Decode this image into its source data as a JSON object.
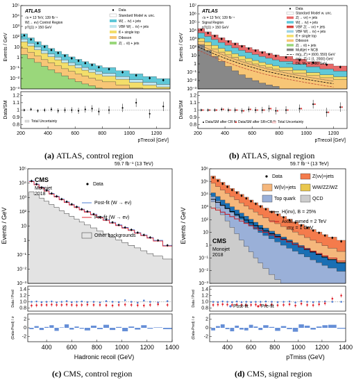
{
  "colors": {
    "atlas_zvv": "#f28b5e",
    "atlas_wlv": "#5fc8d8",
    "atlas_vbf": "#bfe6ef",
    "atlas_tt": "#f3de6a",
    "atlas_diboson": "#f7c676",
    "atlas_zll": "#9ad77b",
    "atlas_multijet": "#888888",
    "cms_zvv": "#f47b4c",
    "cms_wlv": "#f5b77c",
    "cms_vv": "#e9c74e",
    "cms_top": "#9ab0d8",
    "cms_qcd": "#cccccc",
    "cms_vv_dark": "#1a6fb4",
    "postfit": "#4b7bd0",
    "prefit": "#e0232d"
  },
  "panels": [
    {
      "caption_id": "(a)",
      "caption_text": "ATLAS, control region",
      "header": "ATLAS",
      "sub1": "√s = 13 TeV, 139 fb⁻¹",
      "sub2": "W(→ eν) Control Region",
      "sub3": "pT(j1) > 150 GeV",
      "ylabel": "Events / GeV",
      "ratio_ylabel": "Data/SM",
      "xlabel": "pTrecoil [GeV]",
      "legend": [
        "Data",
        "Standard Model w. unc.",
        "W(→ ℓν) + jets",
        "VBF W(→ ℓν) + jets",
        "tt̄ + single top",
        "Diboson",
        "Z(→ ℓℓ) + jets"
      ],
      "ratio_legend": "Total Uncertainty",
      "xticks": [
        "200",
        "400",
        "600",
        "800",
        "1000",
        "1200"
      ],
      "yticks": [
        "10⁻³",
        "10⁻²",
        "10⁻¹",
        "1",
        "10",
        "10²",
        "10³",
        "10⁴",
        "10⁵"
      ],
      "ratio_yticks": [
        "0.8",
        "0.9",
        "1",
        "1.1",
        "1.2"
      ]
    },
    {
      "caption_id": "(b)",
      "caption_text": "ATLAS, signal region",
      "header": "ATLAS",
      "sub1": "√s = 13 TeV, 139 fb⁻¹",
      "sub2": "Signal Region",
      "sub3": "pT(j1) > 150 GeV",
      "ylabel": "Events / GeV",
      "ratio_ylabel": "Data/SM",
      "xlabel": "pTrecoil [GeV]",
      "legend": [
        "Data",
        "Standard Model w. unc.",
        "Z(→ νν) + jets",
        "W(→ ℓν) + jets",
        "VBF Z(→ νν) + jets",
        "VBF W(→ ℓν) + jets",
        "tt̄ + single top",
        "Diboson",
        "Z(→ ℓℓ) + jets",
        "Multijet + NCB",
        "m(χ, Z') = (600, 550) GeV",
        "m(χ, Z') = (1, 2000) GeV",
        "DE, M⁎ = 1480 GeV"
      ],
      "ratio_legend": [
        "Data/SM after CR fit",
        "Data/SM after SR+CR fit",
        "Total Uncertainty"
      ],
      "xticks": [
        "200",
        "400",
        "600",
        "800",
        "1000",
        "1200"
      ],
      "yticks": [
        "10⁻³",
        "10⁻²",
        "10⁻¹",
        "1",
        "10",
        "10²",
        "10³",
        "10⁴",
        "10⁵",
        "10⁶",
        "10⁷"
      ],
      "ratio_yticks": [
        "0.8",
        "0.9",
        "1",
        "1.1",
        "1.2"
      ]
    },
    {
      "caption_id": "(c)",
      "caption_text": "CMS, control region",
      "header": "CMS",
      "lumi": "59.7 fb⁻¹ (13 TeV)",
      "sub1": "Monojet",
      "sub2": "2018",
      "ylabel": "Events / GeV",
      "ratio_ylabel": "Data / Pred",
      "pull_ylabel": "(Data-Pred) / σ",
      "xlabel": "Hadronic recoil (GeV)",
      "legend": [
        "Data",
        "Post-fit (W → eν)",
        "Pre-fit (W → eν)",
        "Other backgrounds"
      ],
      "xticks": [
        "400",
        "600",
        "800",
        "1000",
        "1200",
        "1400"
      ],
      "yticks": [
        "10⁻³",
        "10⁻²",
        "10⁻¹",
        "1",
        "10",
        "10²",
        "10³",
        "10⁴",
        "10⁵"
      ],
      "ratio_yticks": [
        "0.8",
        "1.0",
        "1.2",
        "1.4"
      ],
      "pull_yticks": [
        "-2",
        "0",
        "2"
      ]
    },
    {
      "caption_id": "(d)",
      "caption_text": "CMS, signal region",
      "header": "CMS",
      "lumi": "59.7 fb⁻¹ (13 TeV)",
      "sub1": "Monojet",
      "sub2": "2018",
      "ylabel": "Events / GeV",
      "ratio_ylabel": "Data / Pred",
      "pull_ylabel": "(Data-Pred) / σ",
      "xlabel": "pTmiss (GeV)",
      "legend": [
        "Data",
        "Z(νν)+jets",
        "W(lν)+jets",
        "WW/ZZ/WZ",
        "Top quark",
        "QCD",
        "H(inv), B = 25%",
        "Axial, mmed = 2 TeV",
        "mχ = 1 GeV"
      ],
      "ratio_legend": [
        "Post-fit",
        "Pre-fit"
      ],
      "xticks": [
        "400",
        "600",
        "800",
        "1000",
        "1200",
        "1400"
      ],
      "yticks": [
        "10⁻³",
        "10⁻²",
        "10⁻¹",
        "1",
        "10",
        "10²",
        "10³",
        "10⁴",
        "10⁵",
        "10⁶"
      ],
      "ratio_yticks": [
        "0.8",
        "1.0",
        "1.2",
        "1.4"
      ],
      "pull_yticks": [
        "-2",
        "0",
        "2"
      ]
    }
  ],
  "chart_data": [
    {
      "type": "area",
      "title": "ATLAS, control region",
      "x": [
        200,
        250,
        300,
        350,
        400,
        450,
        500,
        550,
        600,
        650,
        700,
        750,
        800,
        900,
        1000,
        1100,
        1200
      ],
      "series": [
        {
          "name": "Z(→ ℓℓ) + jets",
          "values": [
            2,
            0.8,
            0.35,
            0.15,
            0.07,
            0.035,
            0.018,
            0.009,
            0.005,
            0.003,
            0.002,
            0.0012,
            0.0008,
            0.0004,
            0.0002,
            0.0001,
            0.0001
          ]
        },
        {
          "name": "Diboson",
          "values": [
            6,
            2.5,
            1.1,
            0.5,
            0.25,
            0.13,
            0.07,
            0.04,
            0.023,
            0.014,
            0.009,
            0.006,
            0.004,
            0.002,
            0.001,
            0.0006,
            0.0004
          ]
        },
        {
          "name": "tt̄ + single top",
          "values": [
            25,
            10,
            4.2,
            1.9,
            0.9,
            0.45,
            0.24,
            0.13,
            0.075,
            0.045,
            0.028,
            0.018,
            0.012,
            0.006,
            0.003,
            0.0016,
            0.001
          ]
        },
        {
          "name": "VBF W(→ ℓν) + jets",
          "values": [
            28,
            11,
            4.8,
            2.2,
            1.05,
            0.53,
            0.28,
            0.155,
            0.09,
            0.054,
            0.034,
            0.022,
            0.014,
            0.007,
            0.0036,
            0.002,
            0.0012
          ]
        },
        {
          "name": "W(→ ℓν) + jets",
          "values": [
            130,
            55,
            24,
            11,
            5.4,
            2.8,
            1.5,
            0.85,
            0.5,
            0.3,
            0.19,
            0.12,
            0.08,
            0.04,
            0.02,
            0.011,
            0.007
          ]
        }
      ],
      "data": [
        135,
        56,
        24,
        11.2,
        5.5,
        2.8,
        1.5,
        0.86,
        0.5,
        0.3,
        0.2,
        0.12,
        0.08,
        0.04,
        0.02,
        0.011,
        0.007
      ],
      "ratio": [
        1.0,
        1.01,
        0.99,
        1.0,
        1.01,
        0.99,
        1.0,
        1.0,
        0.99,
        1.01,
        1.02,
        0.98,
        1.0,
        1.03,
        1.1,
        0.95,
        1.05
      ],
      "xlim": [
        200,
        1300
      ],
      "ylim_log": [
        -3,
        5
      ]
    },
    {
      "type": "area",
      "title": "ATLAS, signal region",
      "x": [
        200,
        250,
        300,
        350,
        400,
        450,
        500,
        550,
        600,
        650,
        700,
        750,
        800,
        900,
        1000,
        1100,
        1200
      ],
      "series": [
        {
          "name": "Multijet + NCB",
          "values": [
            200,
            40,
            8,
            2,
            0.5,
            0.15,
            0.05,
            0.02,
            0.01,
            0.005,
            0.003,
            0.002,
            0.001,
            0.0005,
            0.0003,
            0.0002,
            0.0001
          ]
        },
        {
          "name": "Diboson",
          "values": [
            300,
            120,
            52,
            24,
            12,
            6,
            3.2,
            1.8,
            1.0,
            0.6,
            0.38,
            0.24,
            0.16,
            0.08,
            0.04,
            0.022,
            0.013
          ]
        },
        {
          "name": "tt̄ + single top",
          "values": [
            700,
            260,
            110,
            48,
            22,
            10.5,
            5.3,
            2.8,
            1.55,
            0.9,
            0.54,
            0.34,
            0.22,
            0.1,
            0.05,
            0.027,
            0.016
          ]
        },
        {
          "name": "W(→ ℓν) + jets",
          "values": [
            4000,
            1600,
            680,
            300,
            140,
            68,
            35,
            19,
            11,
            6.4,
            3.9,
            2.5,
            1.6,
            0.75,
            0.37,
            0.2,
            0.11
          ]
        },
        {
          "name": "Z(→ νν) + jets",
          "values": [
            12000,
            5000,
            2200,
            1000,
            480,
            240,
            125,
            68,
            39,
            23,
            14,
            9,
            6,
            2.8,
            1.4,
            0.75,
            0.42
          ]
        }
      ],
      "data": [
        12200,
        5050,
        2210,
        1005,
        478,
        242,
        126,
        69,
        39,
        23,
        14.2,
        9.1,
        6.1,
        2.9,
        1.45,
        0.8,
        0.42
      ],
      "ratio": [
        1.0,
        1.0,
        1.0,
        1.01,
        1.0,
        1.0,
        0.99,
        1.01,
        1.0,
        1.0,
        1.02,
        0.99,
        1.0,
        1.02,
        1.08,
        0.97,
        1.04
      ],
      "xlim": [
        200,
        1300
      ],
      "ylim_log": [
        -3,
        7
      ]
    },
    {
      "type": "line",
      "title": "CMS, control region",
      "x": [
        260,
        300,
        340,
        380,
        420,
        460,
        500,
        540,
        580,
        620,
        660,
        700,
        750,
        800,
        850,
        900,
        950,
        1000,
        1050,
        1100,
        1150,
        1200,
        1250,
        1325
      ],
      "data": [
        14000,
        8500,
        5000,
        3100,
        1900,
        1200,
        760,
        500,
        330,
        220,
        150,
        105,
        68,
        42,
        28,
        18,
        12,
        8,
        5.5,
        3.5,
        2.4,
        1.6,
        1.0,
        0.45
      ],
      "other_backgrounds": [
        2500,
        1500,
        900,
        540,
        320,
        200,
        120,
        75,
        48,
        30,
        19,
        12,
        7.5,
        4.5,
        2.8,
        1.7,
        1.1,
        0.7,
        0.45,
        0.3,
        0.19,
        0.12,
        0.08,
        0.05
      ],
      "ratio_data": [
        1.0,
        1.01,
        0.99,
        1.0,
        1.01,
        0.98,
        1.0,
        1.02,
        0.99,
        1.0,
        1.01,
        0.99,
        1.0,
        0.98,
        1.02,
        1.0,
        0.99,
        1.05,
        1.0,
        0.97,
        1.04,
        1.0,
        0.98,
        1.02
      ],
      "ratio_prefit": [
        0.88,
        0.89,
        0.9,
        0.9,
        0.91,
        0.9,
        0.9,
        0.91,
        0.9,
        0.89,
        0.9,
        0.91,
        0.9,
        0.9,
        0.89,
        0.88,
        0.9,
        0.91,
        0.9,
        0.89,
        0.88,
        0.9,
        0.92,
        0.9
      ],
      "pull": [
        -0.3,
        0.4,
        -0.5,
        0.2,
        0.6,
        -0.7,
        0.1,
        0.8,
        -0.4,
        0.3,
        -0.2,
        -0.6,
        0.5,
        -0.3,
        0.7,
        -0.5,
        0.2,
        -0.8,
        0.3,
        -0.4,
        0.6,
        -0.2,
        0.1,
        -0.3
      ],
      "xlim": [
        250,
        1400
      ],
      "ylim_log": [
        -3,
        5
      ]
    },
    {
      "type": "area",
      "title": "CMS, signal region",
      "x": [
        260,
        300,
        340,
        380,
        420,
        460,
        500,
        540,
        580,
        620,
        660,
        700,
        750,
        800,
        850,
        900,
        950,
        1000,
        1050,
        1100,
        1150,
        1200,
        1250,
        1325
      ],
      "series": [
        {
          "name": "QCD",
          "values": [
            2500,
            800,
            250,
            80,
            25,
            8,
            2.5,
            0.8,
            0.3,
            0.1,
            0.04,
            0.015,
            0.005,
            0.002,
            0.001,
            0.001,
            0.001,
            0.001,
            0.001,
            0.001,
            0.001,
            0.001,
            0.001,
            0.001
          ]
        },
        {
          "name": "Top quark",
          "values": [
            4000,
            2200,
            1200,
            650,
            350,
            190,
            105,
            58,
            32,
            18,
            10,
            5.8,
            3.2,
            1.8,
            1.0,
            0.58,
            0.34,
            0.2,
            0.12,
            0.07,
            0.042,
            0.025,
            0.015,
            0.008
          ]
        },
        {
          "name": "WW/ZZ/WZ",
          "values": [
            6500,
            3700,
            2100,
            1200,
            680,
            390,
            225,
            130,
            76,
            45,
            27,
            16,
            9.5,
            5.6,
            3.4,
            2.0,
            1.2,
            0.75,
            0.46,
            0.28,
            0.17,
            0.1,
            0.06,
            0.035
          ]
        },
        {
          "name": "W(lν)+jets",
          "values": [
            60000,
            33000,
            18000,
            10000,
            5500,
            3100,
            1750,
            1000,
            580,
            340,
            200,
            120,
            70,
            42,
            25,
            15,
            9.2,
            5.6,
            3.4,
            2.1,
            1.3,
            0.8,
            0.5,
            0.28
          ]
        },
        {
          "name": "Z(νν)+jets",
          "values": [
            200000,
            115000,
            66000,
            38000,
            22000,
            13000,
            7800,
            4700,
            2850,
            1750,
            1080,
            670,
            400,
            245,
            150,
            93,
            58,
            36,
            23,
            14.5,
            9.2,
            5.8,
            3.7,
            2.1
          ]
        }
      ],
      "data": [
        202000,
        114000,
        66500,
        38200,
        21800,
        13100,
        7750,
        4720,
        2830,
        1760,
        1085,
        665,
        402,
        244,
        151,
        92,
        58.5,
        36,
        23.5,
        14.2,
        9.4,
        5.7,
        3.8,
        2.0
      ],
      "ratio_postfit": [
        1.0,
        0.99,
        1.01,
        1.0,
        0.99,
        1.01,
        0.99,
        1.0,
        0.99,
        1.0,
        1.0,
        1.01,
        1.0,
        0.99,
        1.0,
        1.01,
        0.98,
        1.02,
        1.0,
        0.99,
        1.0,
        1.01,
        1.0,
        1.0
      ],
      "ratio_prefit": [
        0.9,
        0.91,
        0.92,
        0.91,
        0.9,
        0.91,
        0.9,
        0.89,
        0.9,
        0.91,
        0.9,
        0.9,
        0.91,
        0.89,
        0.9,
        0.92,
        0.88,
        0.94,
        0.9,
        0.89,
        0.92,
        0.95,
        1.1,
        1.2
      ],
      "pull": [
        -0.6,
        0.4,
        0.8,
        -0.3,
        -0.8,
        0.5,
        -0.4,
        -0.6,
        0.7,
        0.3,
        -0.5,
        0.6,
        0.2,
        -0.7,
        0.4,
        -0.3,
        -0.9,
        0.8,
        0.5,
        -0.4,
        0.3,
        0.6,
        0.7,
        -0.2
      ],
      "xlim": [
        250,
        1400
      ],
      "ylim_log": [
        -3,
        6
      ]
    }
  ]
}
